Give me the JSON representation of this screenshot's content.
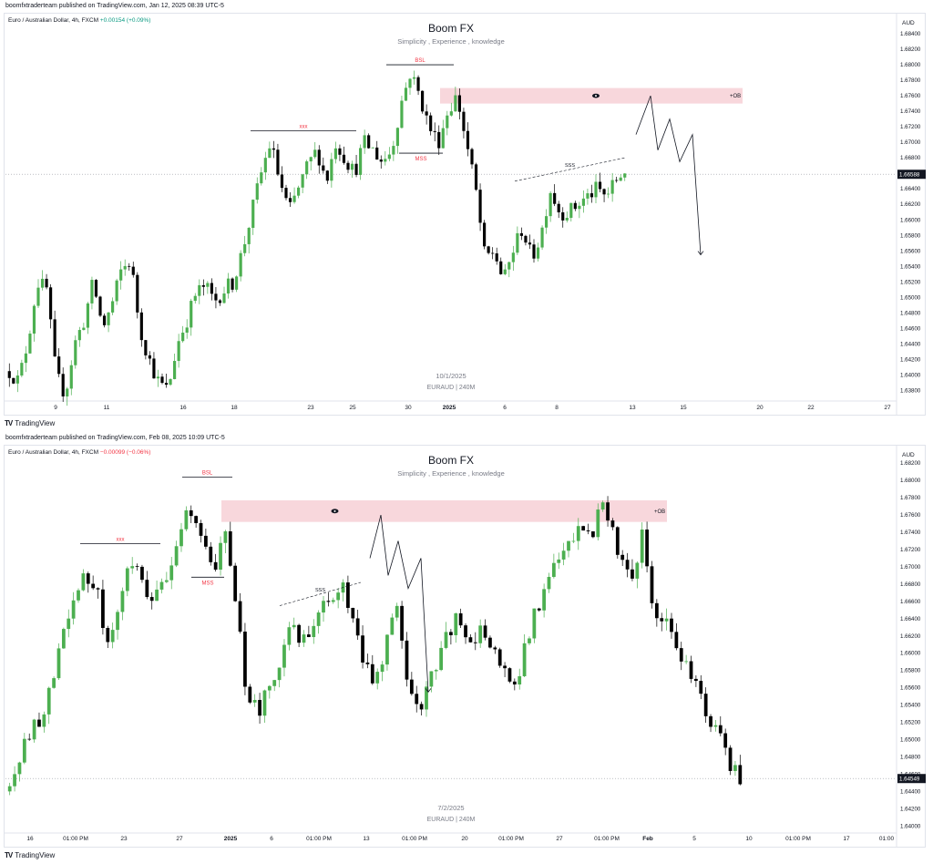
{
  "panels": [
    {
      "publisher": "boomfxtraderteam published on TradingView.com, Jan 12, 2025 08:39 UTC-5",
      "symbol": "Euro / Australian Dollar, 4h, FXCM",
      "change": "+0.00154 (+0.09%)",
      "change_color": "#089981",
      "watermark_title": "Boom FX",
      "watermark_subtitle": "Simplicity , Experience , knowledge",
      "watermark_date": "10/1/2025",
      "watermark_symbol": "EURAUD | 240M",
      "currency": "AUD",
      "price_labels": [
        "1.68400",
        "1.68200",
        "1.68000",
        "1.67800",
        "1.67600",
        "1.67400",
        "1.67200",
        "1.67000",
        "1.66800",
        "1.66600",
        "1.66400",
        "1.66200",
        "1.66000",
        "1.65800",
        "1.65600",
        "1.65400",
        "1.65200",
        "1.65000",
        "1.64800",
        "1.64600",
        "1.64400",
        "1.64200",
        "1.64000",
        "1.63800"
      ],
      "current_price": "1.66588",
      "time_labels": [
        "9",
        "11",
        "16",
        "18",
        "23",
        "25",
        "30",
        "2025",
        "6",
        "8",
        "13",
        "15",
        "20",
        "22",
        "27"
      ],
      "annotations": {
        "bsl": "BSL",
        "xxx": "xxx",
        "mss": "MSS",
        "sss": "SSS",
        "ob": "+OB"
      },
      "brand": "TradingView"
    },
    {
      "publisher": "boomfxtraderteam published on TradingView.com, Feb 08, 2025 10:09 UTC-5",
      "symbol": "Euro / Australian Dollar, 4h, FXCM",
      "change": "−0.00099 (−0.06%)",
      "change_color": "#f23645",
      "watermark_title": "Boom FX",
      "watermark_subtitle": "Simplicity , Experience , knowledge",
      "watermark_date": "7/2/2025",
      "watermark_symbol": "EURAUD | 240M",
      "currency": "AUD",
      "price_labels": [
        "1.68200",
        "1.68000",
        "1.67800",
        "1.67600",
        "1.67400",
        "1.67200",
        "1.67000",
        "1.66800",
        "1.66600",
        "1.66400",
        "1.66200",
        "1.66000",
        "1.65800",
        "1.65600",
        "1.65400",
        "1.65200",
        "1.65000",
        "1.64800",
        "1.64600",
        "1.64400",
        "1.64200",
        "1.64000"
      ],
      "current_price": "1.64549",
      "time_labels": [
        "16",
        "01:00 PM",
        "23",
        "27",
        "2025",
        "6",
        "01:00 PM",
        "13",
        "01:00 PM",
        "20",
        "01:00 PM",
        "27",
        "01:00 PM",
        "Feb",
        "5",
        "10",
        "01:00 PM",
        "17",
        "01:00"
      ],
      "annotations": {
        "bsl": "BSL",
        "xxx": "xxx",
        "mss": "MSS",
        "sss": "SSS",
        "ob": "+OB"
      },
      "brand": "TradingView"
    }
  ],
  "chart_data": [
    {
      "type": "candlestick",
      "title": "Euro / Australian Dollar, 4h, FXCM",
      "ylim": [
        1.637,
        1.686
      ],
      "current_price": 1.66588,
      "colors": {
        "up": "#4caf50",
        "down": "#000000",
        "ob_zone": "#f8d7dc"
      },
      "anchors": [
        1.6405,
        1.6392,
        1.6445,
        1.652,
        1.651,
        1.64,
        1.6375,
        1.644,
        1.647,
        1.652,
        1.646,
        1.649,
        1.6535,
        1.6548,
        1.646,
        1.642,
        1.639,
        1.638,
        1.644,
        1.647,
        1.6505,
        1.6515,
        1.6495,
        1.651,
        1.652,
        1.656,
        1.661,
        1.666,
        1.67,
        1.665,
        1.661,
        1.664,
        1.667,
        1.669,
        1.665,
        1.67,
        1.668,
        1.666,
        1.67,
        1.669,
        1.6675,
        1.669,
        1.675,
        1.679,
        1.676,
        1.672,
        1.67,
        1.674,
        1.676,
        1.67,
        1.664,
        1.655,
        1.656,
        1.652,
        1.656,
        1.659,
        1.655,
        1.658,
        1.664,
        1.661,
        1.661,
        1.662,
        1.663,
        1.664,
        1.663,
        1.665,
        1.6665
      ],
      "key_levels": {
        "bsl": 1.68,
        "xxx": 1.6715,
        "mss": 1.6686,
        "ob_zone": [
          1.675,
          1.677
        ]
      },
      "projection": [
        [
          1.671,
          "13"
        ],
        [
          1.676,
          "13.5"
        ],
        [
          1.669,
          "14"
        ],
        [
          1.673,
          "14.5"
        ],
        [
          1.6675,
          "15"
        ],
        [
          1.671,
          "15.5"
        ],
        [
          1.6555,
          "16"
        ]
      ],
      "xlabel": "",
      "ylabel": ""
    },
    {
      "type": "candlestick",
      "title": "Euro / Australian Dollar, 4h, FXCM",
      "ylim": [
        1.6395,
        1.6835
      ],
      "current_price": 1.64549,
      "colors": {
        "up": "#4caf50",
        "down": "#000000",
        "ob_zone": "#f8d7dc"
      },
      "anchors": [
        1.644,
        1.648,
        1.651,
        1.653,
        1.657,
        1.662,
        1.666,
        1.669,
        1.668,
        1.662,
        1.664,
        1.669,
        1.669,
        1.666,
        1.668,
        1.67,
        1.6745,
        1.677,
        1.673,
        1.669,
        1.674,
        1.666,
        1.656,
        1.653,
        1.656,
        1.657,
        1.664,
        1.662,
        1.661,
        1.665,
        1.666,
        1.668,
        1.664,
        1.659,
        1.657,
        1.661,
        1.666,
        1.656,
        1.653,
        1.657,
        1.659,
        1.663,
        1.664,
        1.661,
        1.663,
        1.66,
        1.658,
        1.656,
        1.661,
        1.665,
        1.668,
        1.671,
        1.672,
        1.674,
        1.673,
        1.677,
        1.676,
        1.67,
        1.668,
        1.674,
        1.664,
        1.665,
        1.66,
        1.658,
        1.656,
        1.653,
        1.651,
        1.647,
        1.6458
      ],
      "key_levels": {
        "bsl": 1.6804,
        "xxx": 1.6727,
        "mss": 1.6688,
        "ob_zone": [
          1.6752,
          1.6777
        ]
      },
      "projection": [
        [
          1.671,
          "~13"
        ],
        [
          1.676,
          "~13.3"
        ],
        [
          1.669,
          "~13.6"
        ],
        [
          1.673,
          "~13.9"
        ],
        [
          1.6675,
          "~14.2"
        ],
        [
          1.671,
          "~14.5"
        ],
        [
          1.6555,
          "~15"
        ]
      ],
      "xlabel": "",
      "ylabel": ""
    }
  ]
}
